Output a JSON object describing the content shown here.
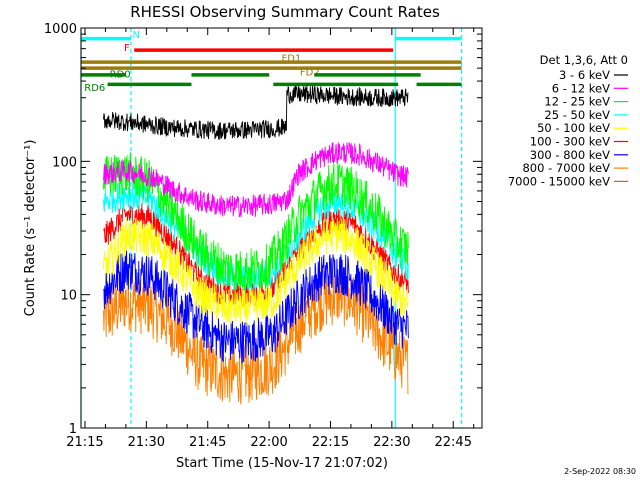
{
  "chart_data": {
    "type": "line",
    "title": "RHESSI Observing Summary Count Rates",
    "xlabel": "Start Time (15-Nov-17 21:07:02)",
    "ylabel": "Count Rate (s⁻¹ detector⁻¹)",
    "y_scale": "log",
    "ylim": [
      1,
      1000
    ],
    "xlim": [
      7.0,
      105.0
    ],
    "x_units": "minutes after 21:07:02",
    "x_ticks": [
      {
        "value": 7.97,
        "label": "21:15"
      },
      {
        "value": 22.97,
        "label": "21:30"
      },
      {
        "value": 37.97,
        "label": "21:45"
      },
      {
        "value": 52.97,
        "label": "22:00"
      },
      {
        "value": 67.97,
        "label": "22:15"
      },
      {
        "value": 82.97,
        "label": "22:30"
      },
      {
        "value": 97.97,
        "label": "22:45"
      }
    ],
    "y_ticks": [
      {
        "value": 1,
        "label": "1"
      },
      {
        "value": 10,
        "label": "10"
      },
      {
        "value": 100,
        "label": "100"
      },
      {
        "value": 1000,
        "label": "1000"
      }
    ],
    "legend_title": "Det 1,3,6, Att 0",
    "legend_position": "right",
    "data_start": 12.5,
    "data_end": 87.0,
    "vlines": [
      {
        "x": 7.0,
        "color": "#00ffff",
        "style": "solid"
      },
      {
        "x": 19.2,
        "color": "#00ffff",
        "style": "dashed"
      },
      {
        "x": 83.8,
        "color": "#00ffff",
        "style": "solid"
      },
      {
        "x": 100.0,
        "color": "#00ffff",
        "style": "dashed"
      }
    ],
    "bars": [
      {
        "label": "N",
        "color": "#00ffff",
        "segments": [
          [
            7.0,
            19.2
          ],
          [
            83.8,
            100.0
          ]
        ],
        "level": 832,
        "label_x": 19.6,
        "label_level": 900
      },
      {
        "label": "F",
        "color": "#ff0000",
        "segments": [
          [
            20.0,
            83.3
          ]
        ],
        "level": 682,
        "label_x": 17.5,
        "label_level": 720
      },
      {
        "label": "FD1",
        "color": "#9a7d0a",
        "segments": [
          [
            7.0,
            100.0
          ]
        ],
        "level": 555,
        "label_x": 56.0,
        "label_level": 600
      },
      {
        "label": "FD2",
        "color": "#9a7d0a",
        "segments": [
          [
            7.0,
            100.0
          ]
        ],
        "level": 500,
        "label_x": 60.5,
        "label_level": 470
      },
      {
        "label": "RD0",
        "color": "#008000",
        "segments": [
          [
            7.0,
            18.0
          ],
          [
            34.0,
            53.0
          ],
          [
            64.0,
            90.0
          ]
        ],
        "level": 445,
        "label_x": 14.0,
        "label_level": 455
      },
      {
        "label": "RD6",
        "color": "#008000",
        "segments": [
          [
            13.5,
            34.0
          ],
          [
            54.0,
            84.5
          ],
          [
            89.0,
            100.0
          ]
        ],
        "level": 378,
        "label_x": 7.8,
        "label_level": 360
      }
    ],
    "series": [
      {
        "name": "3 - 6 keV",
        "color": "#000000",
        "points": [
          [
            12.5,
            205
          ],
          [
            20,
            195
          ],
          [
            28,
            180
          ],
          [
            34,
            175
          ],
          [
            40,
            170
          ],
          [
            48,
            172
          ],
          [
            54,
            176
          ],
          [
            57.2,
            180
          ],
          [
            57.3,
            320
          ],
          [
            65,
            315
          ],
          [
            72,
            305
          ],
          [
            80,
            300
          ],
          [
            87,
            300
          ]
        ],
        "noise": 0.05
      },
      {
        "name": "6 - 12 keV",
        "color": "#ff00ff",
        "points": [
          [
            12.5,
            80
          ],
          [
            18,
            85
          ],
          [
            24,
            78
          ],
          [
            30,
            60
          ],
          [
            36,
            50
          ],
          [
            42,
            46
          ],
          [
            48,
            46
          ],
          [
            54,
            48
          ],
          [
            57.5,
            52
          ],
          [
            60,
            80
          ],
          [
            65,
            105
          ],
          [
            70,
            118
          ],
          [
            75,
            112
          ],
          [
            80,
            95
          ],
          [
            84,
            80
          ],
          [
            87,
            75
          ]
        ],
        "noise": 0.06
      },
      {
        "name": "12 - 25 keV",
        "color": "#00ff00",
        "points": [
          [
            12.5,
            75
          ],
          [
            18,
            82
          ],
          [
            24,
            70
          ],
          [
            30,
            40
          ],
          [
            36,
            22
          ],
          [
            42,
            16
          ],
          [
            46,
            15
          ],
          [
            52,
            16
          ],
          [
            56,
            22
          ],
          [
            60,
            38
          ],
          [
            66,
            62
          ],
          [
            70,
            70
          ],
          [
            74,
            60
          ],
          [
            80,
            38
          ],
          [
            84,
            25
          ],
          [
            87,
            22
          ]
        ],
        "noise": 0.12
      },
      {
        "name": "25 - 50 keV",
        "color": "#00ffff",
        "points": [
          [
            12.5,
            50
          ],
          [
            18,
            57
          ],
          [
            24,
            52
          ],
          [
            30,
            33
          ],
          [
            36,
            20
          ],
          [
            42,
            14
          ],
          [
            48,
            13
          ],
          [
            54,
            15
          ],
          [
            58,
            22
          ],
          [
            62,
            33
          ],
          [
            66,
            46
          ],
          [
            70,
            50
          ],
          [
            74,
            44
          ],
          [
            80,
            30
          ],
          [
            84,
            20
          ],
          [
            87,
            16
          ]
        ],
        "noise": 0.08
      },
      {
        "name": "50 - 100 keV",
        "color": "#ffff00",
        "points": [
          [
            12.5,
            15
          ],
          [
            18,
            28
          ],
          [
            24,
            26
          ],
          [
            30,
            17
          ],
          [
            36,
            10
          ],
          [
            42,
            8
          ],
          [
            48,
            8
          ],
          [
            54,
            9
          ],
          [
            58,
            14
          ],
          [
            62,
            20
          ],
          [
            66,
            27
          ],
          [
            70,
            29
          ],
          [
            74,
            25
          ],
          [
            80,
            15
          ],
          [
            84,
            10
          ],
          [
            87,
            8
          ]
        ],
        "noise": 0.1
      },
      {
        "name": "100 - 300 keV",
        "color": "#ff0000",
        "points": [
          [
            12.5,
            27
          ],
          [
            18,
            40
          ],
          [
            24,
            38
          ],
          [
            30,
            23
          ],
          [
            36,
            13
          ],
          [
            42,
            10
          ],
          [
            48,
            10
          ],
          [
            54,
            11
          ],
          [
            58,
            17
          ],
          [
            62,
            25
          ],
          [
            66,
            33
          ],
          [
            70,
            37
          ],
          [
            74,
            33
          ],
          [
            80,
            20
          ],
          [
            84,
            14
          ],
          [
            87,
            12
          ]
        ],
        "noise": 0.07
      },
      {
        "name": "300 - 800 keV",
        "color": "#0000ff",
        "points": [
          [
            12.5,
            11
          ],
          [
            18,
            16
          ],
          [
            24,
            14
          ],
          [
            30,
            9
          ],
          [
            36,
            6
          ],
          [
            42,
            4.5
          ],
          [
            48,
            4.5
          ],
          [
            54,
            5
          ],
          [
            58,
            7.5
          ],
          [
            62,
            11
          ],
          [
            66,
            14
          ],
          [
            70,
            15
          ],
          [
            74,
            13
          ],
          [
            80,
            8.5
          ],
          [
            84,
            6
          ],
          [
            87,
            5.5
          ]
        ],
        "noise": 0.12
      },
      {
        "name": "800 - 7000 keV",
        "color": "#ff8000",
        "points": [
          [
            12.5,
            6.5
          ],
          [
            18,
            9
          ],
          [
            24,
            8
          ],
          [
            30,
            5.5
          ],
          [
            36,
            3
          ],
          [
            42,
            2.5
          ],
          [
            48,
            2.5
          ],
          [
            54,
            3
          ],
          [
            58,
            4.5
          ],
          [
            62,
            7
          ],
          [
            66,
            9
          ],
          [
            70,
            10
          ],
          [
            74,
            8.5
          ],
          [
            80,
            5
          ],
          [
            84,
            3.5
          ],
          [
            87,
            3
          ]
        ],
        "noise": 0.16
      },
      {
        "name": "7000 - 15000 keV",
        "color": "#9a7d0a",
        "points": [],
        "noise": 0
      }
    ],
    "timestamp": "2-Sep-2022 08:30"
  }
}
